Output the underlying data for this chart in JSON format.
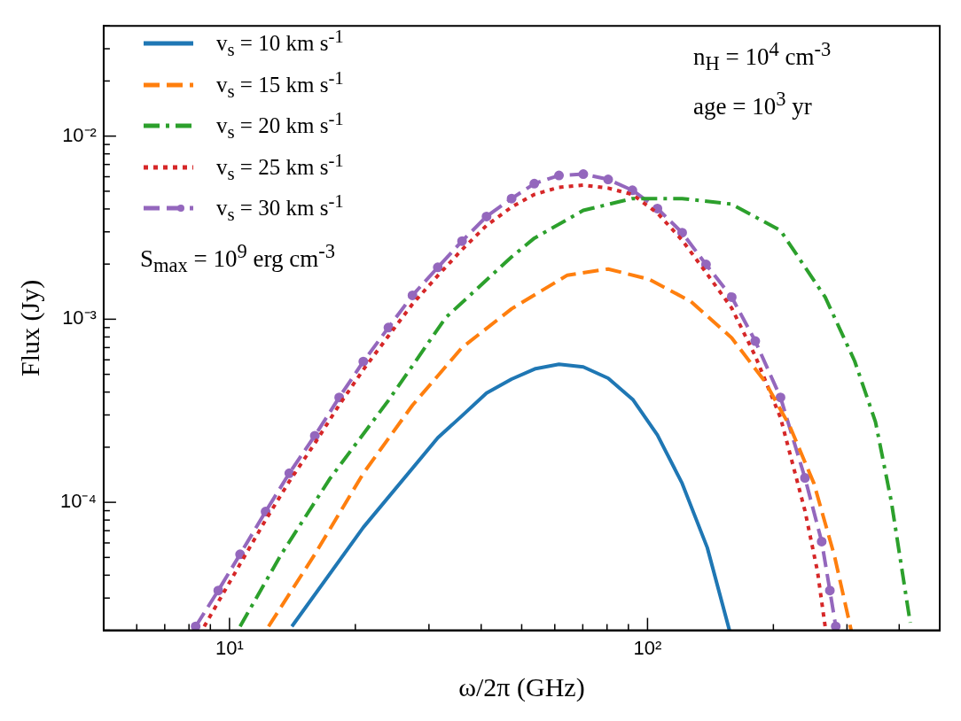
{
  "chart_data": {
    "type": "line",
    "xlabel": "ω/2π (GHz)",
    "ylabel": "Flux (Jy)",
    "log": "xy",
    "grid": false,
    "legend": "top left",
    "xlim": [
      5,
      500
    ],
    "ylim": [
      2e-05,
      0.04
    ],
    "xticks": [
      {
        "value": 5,
        "label": null
      },
      {
        "value": 6,
        "label": null
      },
      {
        "value": 7,
        "label": null
      },
      {
        "value": 8,
        "label": null
      },
      {
        "value": 9,
        "label": null
      },
      {
        "value": 10,
        "label": "10¹"
      },
      {
        "value": 20,
        "label": null
      },
      {
        "value": 30,
        "label": null
      },
      {
        "value": 40,
        "label": null
      },
      {
        "value": 50,
        "label": null
      },
      {
        "value": 60,
        "label": null
      },
      {
        "value": 70,
        "label": null
      },
      {
        "value": 80,
        "label": null
      },
      {
        "value": 90,
        "label": null
      },
      {
        "value": 100,
        "label": "10²"
      },
      {
        "value": 200,
        "label": null
      },
      {
        "value": 300,
        "label": null
      },
      {
        "value": 400,
        "label": null
      },
      {
        "value": 500,
        "label": null
      }
    ],
    "yticks": [
      {
        "value": 2e-05,
        "label": null
      },
      {
        "value": 3e-05,
        "label": null
      },
      {
        "value": 4e-05,
        "label": null
      },
      {
        "value": 5e-05,
        "label": null
      },
      {
        "value": 6e-05,
        "label": null
      },
      {
        "value": 7e-05,
        "label": null
      },
      {
        "value": 8e-05,
        "label": null
      },
      {
        "value": 9e-05,
        "label": null
      },
      {
        "value": 0.0001,
        "label": "10⁻⁴"
      },
      {
        "value": 0.0002,
        "label": null
      },
      {
        "value": 0.0003,
        "label": null
      },
      {
        "value": 0.0004,
        "label": null
      },
      {
        "value": 0.0005,
        "label": null
      },
      {
        "value": 0.0006,
        "label": null
      },
      {
        "value": 0.0007,
        "label": null
      },
      {
        "value": 0.0008,
        "label": null
      },
      {
        "value": 0.0009,
        "label": null
      },
      {
        "value": 0.001,
        "label": "10⁻³"
      },
      {
        "value": 0.002,
        "label": null
      },
      {
        "value": 0.003,
        "label": null
      },
      {
        "value": 0.004,
        "label": null
      },
      {
        "value": 0.005,
        "label": null
      },
      {
        "value": 0.006,
        "label": null
      },
      {
        "value": 0.007,
        "label": null
      },
      {
        "value": 0.008,
        "label": null
      },
      {
        "value": 0.009,
        "label": null
      },
      {
        "value": 0.01,
        "label": "10⁻²"
      },
      {
        "value": 0.02,
        "label": null
      },
      {
        "value": 0.03,
        "label": null
      },
      {
        "value": 0.04,
        "label": null
      }
    ],
    "annotations": [
      "S$_{max}$ = 10$^{9}$ erg cm$^{-3}$",
      "n$_{H}$ = 10$^{4}$ cm$^{-3}$",
      "age = 10$^{3}$ yr"
    ],
    "series": [
      {
        "name": "v$_{s}$ = 10 km s$^{-1}$",
        "color": "#1f77b4",
        "line_style": "solid",
        "marker": "none",
        "x": [
          14.1,
          20.9,
          31.5,
          36.0,
          41.2,
          47.3,
          54.0,
          61.4,
          70.2,
          80.5,
          92.4,
          105.6,
          121,
          139,
          157
        ],
        "values": [
          2.1e-05,
          7.3e-05,
          0.000225,
          0.000297,
          0.000395,
          0.000471,
          0.000537,
          0.000567,
          0.000549,
          0.000476,
          0.000362,
          0.000233,
          0.000127,
          5.65e-05,
          2e-05
        ]
      },
      {
        "name": "v$_{s}$ = 15 km s$^{-1}$",
        "color": "#ff7f0e",
        "line_style": "dashed",
        "marker": "none",
        "x": [
          12.4,
          16.0,
          20.9,
          27.4,
          36.0,
          47.3,
          64.3,
          80.5,
          101,
          127,
          159,
          191,
          219,
          250,
          280,
          307
        ],
        "values": [
          2.1e-05,
          5.2e-05,
          0.000144,
          0.000339,
          0.0007,
          0.00114,
          0.00174,
          0.00188,
          0.00165,
          0.00125,
          0.00079,
          0.000456,
          0.00026,
          0.000127,
          5.1e-05,
          2e-05
        ]
      },
      {
        "name": "v$_{s}$ = 20 km s$^{-1}$",
        "color": "#2ca02c",
        "line_style": "dashdot",
        "marker": "none",
        "x": [
          10.6,
          13.3,
          17.4,
          24.0,
          32.9,
          47.3,
          53.6,
          70.2,
          92,
          121,
          159,
          208,
          266,
          313,
          351,
          383,
          425
        ],
        "values": [
          2.1e-05,
          5.2e-05,
          0.000135,
          0.00036,
          0.00102,
          0.00219,
          0.00277,
          0.00393,
          0.00456,
          0.00456,
          0.00425,
          0.00305,
          0.00132,
          0.00059,
          0.000275,
          0.000101,
          2.2e-05
        ]
      },
      {
        "name": "v$_{s}$ = 25 km s$^{-1}$",
        "color": "#d62728",
        "line_style": "dotted",
        "marker": "none",
        "x": [
          8.7,
          10.6,
          12.2,
          13.9,
          16.0,
          18.3,
          20.9,
          24.0,
          27.4,
          31.5,
          36.0,
          41.2,
          47.3,
          53.6,
          61.4,
          70.2,
          80.5,
          92,
          105.6,
          121,
          138,
          159,
          181,
          208,
          238,
          255,
          266
        ],
        "values": [
          2.1e-05,
          4.6e-05,
          8e-05,
          0.00013,
          0.00021,
          0.00034,
          0.00053,
          0.00081,
          0.00121,
          0.00173,
          0.0024,
          0.00325,
          0.0041,
          0.0048,
          0.00525,
          0.0054,
          0.0052,
          0.0048,
          0.0038,
          0.0027,
          0.0018,
          0.00115,
          0.00063,
          0.00029,
          9e-05,
          4.2e-05,
          2.1e-05
        ]
      },
      {
        "name": "v$_{s}$ = 30 km s$^{-1}$",
        "color": "#9467bd",
        "line_style": "dashed",
        "marker": "circle",
        "x": [
          8.3,
          9.4,
          10.6,
          12.2,
          13.9,
          16.0,
          18.3,
          20.9,
          24.0,
          27.4,
          31.5,
          36.0,
          41.2,
          47.3,
          53.6,
          61.4,
          70.2,
          80.5,
          92,
          105.6,
          121,
          138,
          159,
          181,
          208,
          238,
          261,
          273,
          282
        ],
        "values": [
          2.1e-05,
          3.3e-05,
          5.2e-05,
          8.9e-05,
          0.000144,
          0.000231,
          0.000374,
          0.000587,
          0.0009,
          0.00135,
          0.00192,
          0.00267,
          0.00364,
          0.00456,
          0.0055,
          0.0061,
          0.0062,
          0.0058,
          0.00506,
          0.00402,
          0.00297,
          0.00199,
          0.00132,
          0.00076,
          0.000374,
          0.000136,
          6.1e-05,
          3.3e-05,
          2.1e-05
        ]
      }
    ]
  }
}
